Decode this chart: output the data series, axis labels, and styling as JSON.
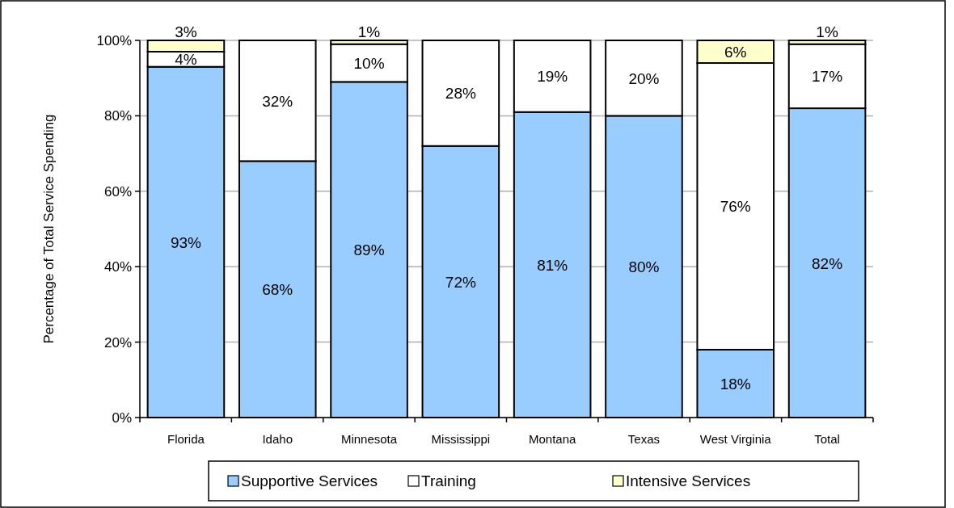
{
  "chart_data": {
    "type": "bar",
    "stacked": true,
    "ylabel": "Percentage of Total Service Spending",
    "categories": [
      "Florida",
      "Idaho",
      "Minnesota",
      "Mississippi",
      "Montana",
      "Texas",
      "West Virginia",
      "Total"
    ],
    "series": [
      {
        "name": "Supportive Services",
        "color": "#99ccff",
        "values": [
          93,
          68,
          89,
          72,
          81,
          80,
          18,
          82
        ],
        "value_labels": [
          "93%",
          "68%",
          "89%",
          "72%",
          "81%",
          "80%",
          "18%",
          "82%"
        ]
      },
      {
        "name": "Training",
        "color": "#ffffff",
        "values": [
          4,
          32,
          10,
          28,
          19,
          20,
          76,
          17
        ],
        "value_labels": [
          "4%",
          "32%",
          "10%",
          "28%",
          "19%",
          "20%",
          "76%",
          "17%"
        ]
      },
      {
        "name": "Intensive Services",
        "color": "#ffffcc",
        "values": [
          3,
          null,
          1,
          null,
          null,
          null,
          6,
          1
        ],
        "value_labels": [
          "3%",
          null,
          "1%",
          null,
          null,
          null,
          "6%",
          "1%"
        ]
      }
    ],
    "ylim": [
      0,
      100
    ],
    "yticks": [
      {
        "value": 0,
        "label": "0%"
      },
      {
        "value": 20,
        "label": "20%"
      },
      {
        "value": 40,
        "label": "40%"
      },
      {
        "value": 60,
        "label": "60%"
      },
      {
        "value": 80,
        "label": "80%"
      },
      {
        "value": 100,
        "label": "100%"
      }
    ],
    "grid": "y",
    "legend": "bottom"
  }
}
